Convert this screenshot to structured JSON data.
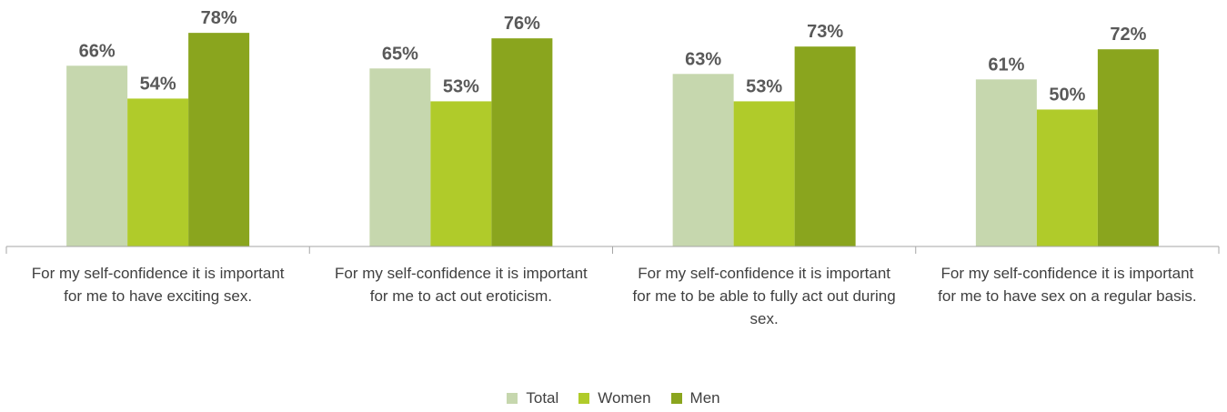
{
  "chart_data": {
    "type": "bar",
    "categories": [
      "For my self-confidence  it is important for me to have exciting sex.",
      "For my self-confidence  it is important for me to act out eroticism.",
      "For my self-confidence  it is important for me to be able to fully act out during sex.",
      "For my self-confidence  it is important for me to have sex on a regular basis."
    ],
    "series": [
      {
        "name": "Total",
        "color": "#c6d7ae",
        "values": [
          66,
          65,
          63,
          61
        ],
        "value_labels": [
          "66%",
          "65%",
          "63%",
          "61%"
        ]
      },
      {
        "name": "Women",
        "color": "#b0cb2a",
        "values": [
          54,
          53,
          53,
          50
        ],
        "value_labels": [
          "54%",
          "53%",
          "53%",
          "50%"
        ]
      },
      {
        "name": "Men",
        "color": "#8aa51e",
        "values": [
          78,
          76,
          73,
          72
        ],
        "value_labels": [
          "78%",
          "76%",
          "73%",
          "72%"
        ]
      }
    ],
    "ylim": [
      0,
      90
    ],
    "legend": "bottom"
  }
}
